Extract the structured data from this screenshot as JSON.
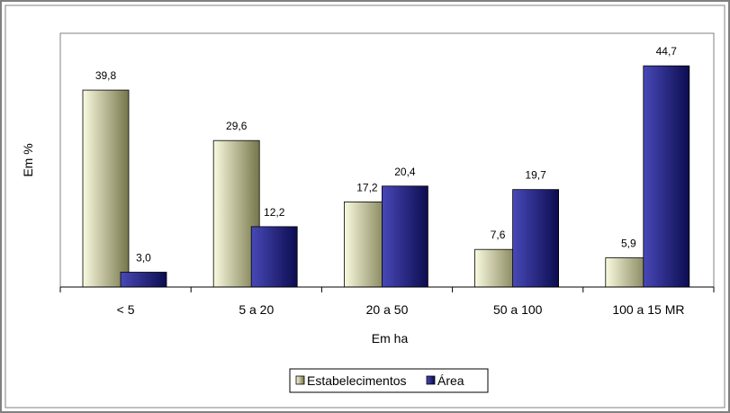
{
  "chart_data": {
    "type": "bar",
    "xlabel": "Em ha",
    "ylabel": "Em %",
    "categories": [
      "< 5",
      "5 a 20",
      "20 a  50",
      "50 a 100",
      "100 a 15 MR"
    ],
    "series": [
      {
        "name": "Estabelecimentos",
        "values": [
          39.8,
          29.6,
          17.2,
          7.6,
          5.9
        ],
        "labels": [
          "39,8",
          "29,6",
          "17,2",
          "7,6",
          "5,9"
        ]
      },
      {
        "name": "Área",
        "values": [
          3.0,
          12.2,
          20.4,
          19.7,
          44.7
        ],
        "labels": [
          "3,0",
          "12,2",
          "20,4",
          "19,7",
          "44,7"
        ]
      }
    ],
    "ylim": [
      0,
      50
    ],
    "grid": false,
    "legend": "bottom",
    "colors": {
      "series1_light": "#fafae0",
      "series1_dark": "#76764a",
      "series2_light": "#4848b8",
      "series2_dark": "#0c0c50",
      "frame": "#808080",
      "plot_border": "#808080"
    }
  }
}
